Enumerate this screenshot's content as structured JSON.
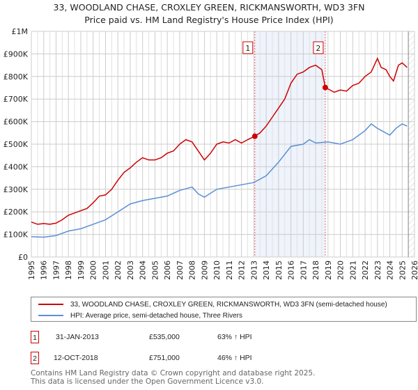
{
  "title": [
    "33, WOODLAND CHASE, CROXLEY GREEN, RICKMANSWORTH, WD3 3FN",
    "Price paid vs. HM Land Registry's House Price Index (HPI)"
  ],
  "chart_data": {
    "type": "line",
    "xlim": [
      1995,
      2026
    ],
    "ylim": [
      0,
      1000000
    ],
    "y_ticks": [
      {
        "v": 0,
        "label": "£0"
      },
      {
        "v": 100000,
        "label": "£100K"
      },
      {
        "v": 200000,
        "label": "£200K"
      },
      {
        "v": 300000,
        "label": "£300K"
      },
      {
        "v": 400000,
        "label": "£400K"
      },
      {
        "v": 500000,
        "label": "£500K"
      },
      {
        "v": 600000,
        "label": "£600K"
      },
      {
        "v": 700000,
        "label": "£700K"
      },
      {
        "v": 800000,
        "label": "£800K"
      },
      {
        "v": 900000,
        "label": "£900K"
      },
      {
        "v": 1000000,
        "label": "£1M"
      }
    ],
    "x_ticks": [
      1995,
      1996,
      1997,
      1998,
      1999,
      2000,
      2001,
      2002,
      2003,
      2004,
      2005,
      2006,
      2007,
      2008,
      2009,
      2010,
      2011,
      2012,
      2013,
      2014,
      2015,
      2016,
      2017,
      2018,
      2019,
      2020,
      2021,
      2022,
      2023,
      2024,
      2025,
      2026
    ],
    "grid": true,
    "shaded_range": [
      2013.08,
      2018.78
    ],
    "forecast_hatch_from": 2025.5,
    "series": [
      {
        "name": "33, WOODLAND CHASE, CROXLEY GREEN, RICKMANSWORTH, WD3 3FN (semi-detached house)",
        "color": "#cc0000",
        "x": [
          1995,
          1995.5,
          1996,
          1996.5,
          1997,
          1997.5,
          1998,
          1998.5,
          1999,
          1999.5,
          2000,
          2000.5,
          2001,
          2001.5,
          2002,
          2002.5,
          2003,
          2003.5,
          2004,
          2004.5,
          2005,
          2005.5,
          2006,
          2006.5,
          2007,
          2007.5,
          2008,
          2008.5,
          2009,
          2009.5,
          2010,
          2010.5,
          2011,
          2011.5,
          2012,
          2012.5,
          2013.08,
          2013.5,
          2014,
          2014.5,
          2015,
          2015.5,
          2016,
          2016.5,
          2017,
          2017.5,
          2018,
          2018.5,
          2018.78,
          2019,
          2019.5,
          2020,
          2020.5,
          2021,
          2021.5,
          2022,
          2022.5,
          2023,
          2023.3,
          2023.7,
          2024,
          2024.3,
          2024.7,
          2025,
          2025.4
        ],
        "y": [
          155000,
          145000,
          148000,
          145000,
          150000,
          165000,
          185000,
          195000,
          205000,
          215000,
          240000,
          270000,
          275000,
          300000,
          340000,
          375000,
          395000,
          420000,
          440000,
          430000,
          430000,
          440000,
          460000,
          470000,
          500000,
          520000,
          510000,
          470000,
          430000,
          460000,
          500000,
          510000,
          505000,
          520000,
          505000,
          520000,
          535000,
          550000,
          580000,
          620000,
          660000,
          700000,
          770000,
          810000,
          820000,
          840000,
          850000,
          830000,
          751000,
          745000,
          730000,
          740000,
          735000,
          760000,
          770000,
          800000,
          820000,
          880000,
          840000,
          830000,
          800000,
          780000,
          850000,
          860000,
          840000
        ]
      },
      {
        "name": "HPI: Average price, semi-detached house, Three Rivers",
        "color": "#5b8fd4",
        "x": [
          1995,
          1996,
          1997,
          1998,
          1999,
          2000,
          2001,
          2002,
          2003,
          2004,
          2005,
          2006,
          2007,
          2008,
          2008.5,
          2009,
          2010,
          2011,
          2012,
          2013,
          2014,
          2015,
          2016,
          2017,
          2017.5,
          2018,
          2019,
          2020,
          2021,
          2022,
          2022.5,
          2023,
          2024,
          2024.5,
          2025,
          2025.4
        ],
        "y": [
          90000,
          88000,
          95000,
          115000,
          125000,
          145000,
          165000,
          200000,
          235000,
          250000,
          260000,
          270000,
          295000,
          310000,
          280000,
          265000,
          300000,
          310000,
          320000,
          330000,
          360000,
          420000,
          490000,
          500000,
          520000,
          505000,
          510000,
          500000,
          520000,
          560000,
          590000,
          570000,
          540000,
          570000,
          590000,
          580000
        ]
      }
    ],
    "sales": [
      {
        "n": "1",
        "x": 2013.08,
        "y": 535000,
        "date": "31-JAN-2013",
        "price": "£535,000",
        "hpi": "63% ↑ HPI"
      },
      {
        "n": "2",
        "x": 2018.78,
        "y": 751000,
        "date": "12-OCT-2018",
        "price": "£751,000",
        "hpi": "46% ↑ HPI"
      }
    ]
  },
  "footer": [
    "Contains HM Land Registry data © Crown copyright and database right 2025.",
    "This data is licensed under the Open Government Licence v3.0."
  ]
}
